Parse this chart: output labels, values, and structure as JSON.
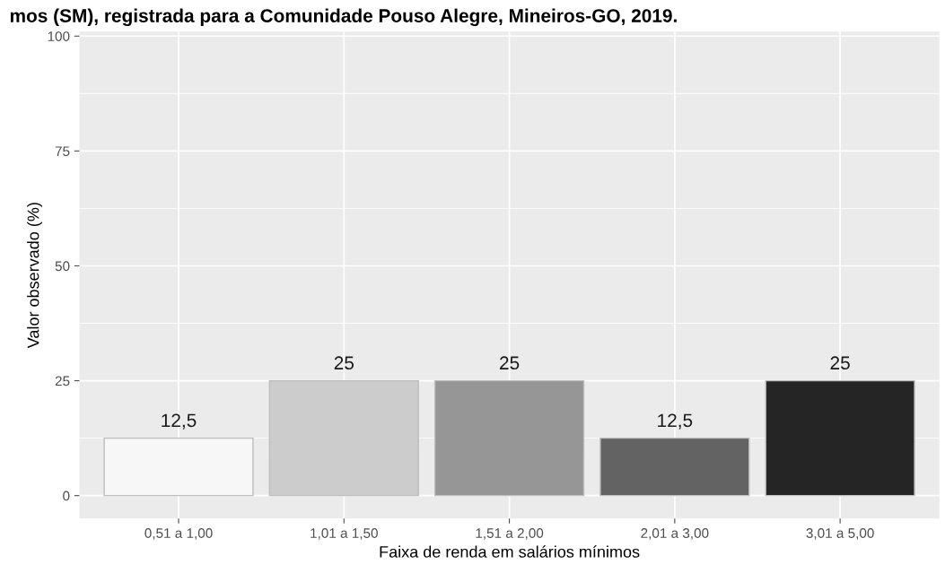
{
  "chart_data": {
    "type": "bar",
    "title": "mos (SM), registrada para a Comunidade Pouso Alegre, Mineiros-GO, 2019.",
    "xlabel": "Faixa de renda em salários mínimos",
    "ylabel": "Valor observado (%)",
    "categories": [
      "0,51 a 1,00",
      "1,01 a 1,50",
      "1,51 a 2,00",
      "2,01 a 3,00",
      "3,01 a 5,00"
    ],
    "values": [
      12.5,
      25,
      25,
      12.5,
      25
    ],
    "colors": [
      "#f7f7f7",
      "#cccccc",
      "#969696",
      "#636363",
      "#252525"
    ],
    "value_labels": [
      "12,5",
      "25",
      "25",
      "12,5",
      "25"
    ],
    "ylim": [
      -5,
      101
    ],
    "yticks": [
      0,
      25,
      50,
      75,
      100
    ],
    "grid": true
  }
}
